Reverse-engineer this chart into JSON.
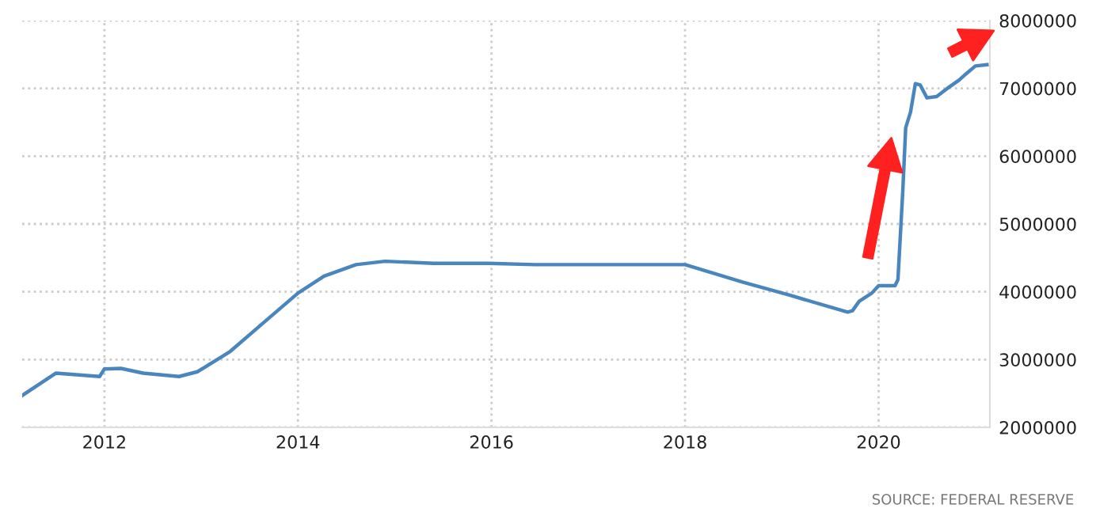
{
  "chart_data": {
    "type": "line",
    "x": [
      2011.15,
      2011.5,
      2011.95,
      2012.0,
      2012.17,
      2012.4,
      2012.77,
      2012.96,
      2013.3,
      2013.6,
      2014.0,
      2014.27,
      2014.6,
      2014.9,
      2015.4,
      2015.97,
      2016.45,
      2018.0,
      2018.6,
      2019.08,
      2019.68,
      2019.73,
      2019.8,
      2019.93,
      2020.0,
      2020.17,
      2020.2,
      2020.25,
      2020.28,
      2020.33,
      2020.38,
      2020.43,
      2020.5,
      2020.6,
      2020.71,
      2020.83,
      2020.9,
      2021.0,
      2021.12
    ],
    "series": [
      {
        "color": "#4a86be",
        "values": [
          2470000,
          2800000,
          2750000,
          2860000,
          2870000,
          2800000,
          2750000,
          2820000,
          3120000,
          3490000,
          3980000,
          4230000,
          4400000,
          4450000,
          4420000,
          4420000,
          4400000,
          4400000,
          4140000,
          3950000,
          3700000,
          3720000,
          3860000,
          3980000,
          4090000,
          4090000,
          4180000,
          5490000,
          6420000,
          6650000,
          7070000,
          7050000,
          6860000,
          6880000,
          7000000,
          7120000,
          7210000,
          7330000,
          7350000
        ]
      }
    ],
    "xlim": [
      2011.15,
      2021.15
    ],
    "ylim": [
      2000000,
      8000000
    ],
    "xticks": [
      2012,
      2014,
      2016,
      2018,
      2020
    ],
    "yticks": [
      2000000,
      3000000,
      4000000,
      5000000,
      6000000,
      7000000,
      8000000
    ],
    "grid": true,
    "legend": false,
    "marker": "none",
    "line_style": "solid",
    "annotations": [
      "SOURCE: FEDERAL RESERVE"
    ]
  }
}
